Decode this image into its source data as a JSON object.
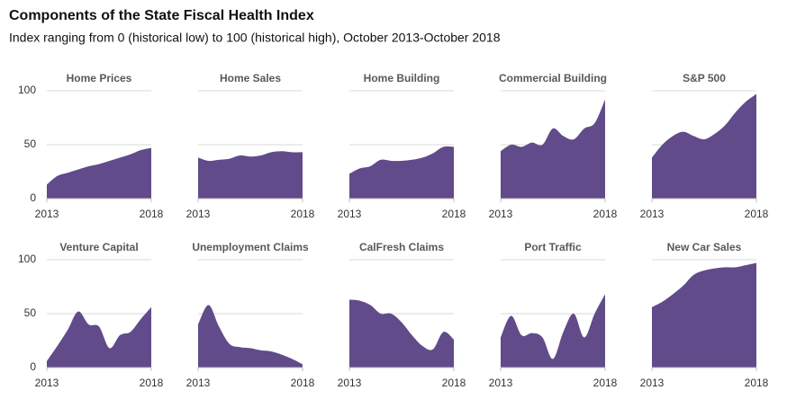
{
  "header": {
    "title": "Components of the State Fiscal Health Index",
    "subtitle": "Index ranging from 0 (historical low) to 100 (historical high), October 2013-October 2018"
  },
  "chart_data": [
    {
      "type": "area",
      "title": "Home Prices",
      "color": "#614b8a",
      "x": [
        2013,
        2013.5,
        2014,
        2014.5,
        2015,
        2015.5,
        2016,
        2016.5,
        2017,
        2017.5,
        2018
      ],
      "values": [
        13,
        21,
        24,
        27,
        30,
        32,
        35,
        38,
        41,
        45,
        47
      ],
      "xlim": [
        2013,
        2018
      ],
      "xticks": [
        2013,
        2018
      ],
      "ylim": [
        0,
        100
      ],
      "yticks": [
        0,
        50,
        100
      ],
      "grid": true
    },
    {
      "type": "area",
      "title": "Home Sales",
      "color": "#614b8a",
      "x": [
        2013,
        2013.5,
        2014,
        2014.5,
        2015,
        2015.5,
        2016,
        2016.5,
        2017,
        2017.5,
        2018
      ],
      "values": [
        38,
        35,
        36,
        37,
        40,
        39,
        40,
        43,
        44,
        43,
        43
      ],
      "xlim": [
        2013,
        2018
      ],
      "xticks": [
        2013,
        2018
      ],
      "ylim": [
        0,
        100
      ],
      "yticks": [
        0,
        50,
        100
      ],
      "grid": true
    },
    {
      "type": "area",
      "title": "Home Building",
      "color": "#614b8a",
      "x": [
        2013,
        2013.5,
        2014,
        2014.5,
        2015,
        2015.5,
        2016,
        2016.5,
        2017,
        2017.5,
        2018
      ],
      "values": [
        23,
        28,
        30,
        36,
        35,
        35,
        36,
        38,
        42,
        48,
        48
      ],
      "xlim": [
        2013,
        2018
      ],
      "xticks": [
        2013,
        2018
      ],
      "ylim": [
        0,
        100
      ],
      "yticks": [
        0,
        50,
        100
      ],
      "grid": true
    },
    {
      "type": "area",
      "title": "Commercial Building",
      "color": "#614b8a",
      "x": [
        2013,
        2013.5,
        2014,
        2014.5,
        2015,
        2015.5,
        2016,
        2016.5,
        2017,
        2017.5,
        2018
      ],
      "values": [
        44,
        50,
        48,
        52,
        50,
        65,
        58,
        55,
        65,
        70,
        92
      ],
      "xlim": [
        2013,
        2018
      ],
      "xticks": [
        2013,
        2018
      ],
      "ylim": [
        0,
        100
      ],
      "yticks": [
        0,
        50,
        100
      ],
      "grid": true
    },
    {
      "type": "area",
      "title": "S&P 500",
      "color": "#614b8a",
      "x": [
        2013,
        2013.5,
        2014,
        2014.5,
        2015,
        2015.5,
        2016,
        2016.5,
        2017,
        2017.5,
        2018
      ],
      "values": [
        38,
        50,
        58,
        62,
        58,
        55,
        60,
        68,
        80,
        90,
        97
      ],
      "xlim": [
        2013,
        2018
      ],
      "xticks": [
        2013,
        2018
      ],
      "ylim": [
        0,
        100
      ],
      "yticks": [
        0,
        50,
        100
      ],
      "grid": true
    },
    {
      "type": "area",
      "title": "Venture Capital",
      "color": "#614b8a",
      "x": [
        2013,
        2013.5,
        2014,
        2014.5,
        2015,
        2015.5,
        2016,
        2016.5,
        2017,
        2017.5,
        2018
      ],
      "values": [
        6,
        20,
        35,
        52,
        40,
        38,
        18,
        30,
        33,
        45,
        56
      ],
      "xlim": [
        2013,
        2018
      ],
      "xticks": [
        2013,
        2018
      ],
      "ylim": [
        0,
        100
      ],
      "yticks": [
        0,
        50,
        100
      ],
      "grid": true
    },
    {
      "type": "area",
      "title": "Unemployment Claims",
      "color": "#614b8a",
      "x": [
        2013,
        2013.5,
        2014,
        2014.5,
        2015,
        2015.5,
        2016,
        2016.5,
        2017,
        2017.5,
        2018
      ],
      "values": [
        40,
        58,
        38,
        22,
        19,
        18,
        16,
        15,
        12,
        8,
        3
      ],
      "xlim": [
        2013,
        2018
      ],
      "xticks": [
        2013,
        2018
      ],
      "ylim": [
        0,
        100
      ],
      "yticks": [
        0,
        50,
        100
      ],
      "grid": true
    },
    {
      "type": "area",
      "title": "CalFresh Claims",
      "color": "#614b8a",
      "x": [
        2013,
        2013.5,
        2014,
        2014.5,
        2015,
        2015.5,
        2016,
        2016.5,
        2017,
        2017.5,
        2018
      ],
      "values": [
        63,
        62,
        58,
        50,
        50,
        42,
        30,
        20,
        17,
        33,
        26
      ],
      "xlim": [
        2013,
        2018
      ],
      "xticks": [
        2013,
        2018
      ],
      "ylim": [
        0,
        100
      ],
      "yticks": [
        0,
        50,
        100
      ],
      "grid": true
    },
    {
      "type": "area",
      "title": "Port Traffic",
      "color": "#614b8a",
      "x": [
        2013,
        2013.5,
        2014,
        2014.5,
        2015,
        2015.5,
        2016,
        2016.5,
        2017,
        2017.5,
        2018
      ],
      "values": [
        28,
        48,
        30,
        32,
        28,
        8,
        33,
        50,
        28,
        50,
        68
      ],
      "xlim": [
        2013,
        2018
      ],
      "xticks": [
        2013,
        2018
      ],
      "ylim": [
        0,
        100
      ],
      "yticks": [
        0,
        50,
        100
      ],
      "grid": true
    },
    {
      "type": "area",
      "title": "New Car Sales",
      "color": "#614b8a",
      "x": [
        2013,
        2013.5,
        2014,
        2014.5,
        2015,
        2015.5,
        2016,
        2016.5,
        2017,
        2017.5,
        2018
      ],
      "values": [
        56,
        61,
        68,
        76,
        86,
        90,
        92,
        93,
        93,
        95,
        97
      ],
      "xlim": [
        2013,
        2018
      ],
      "xticks": [
        2013,
        2018
      ],
      "ylim": [
        0,
        100
      ],
      "yticks": [
        0,
        50,
        100
      ],
      "grid": true
    }
  ]
}
